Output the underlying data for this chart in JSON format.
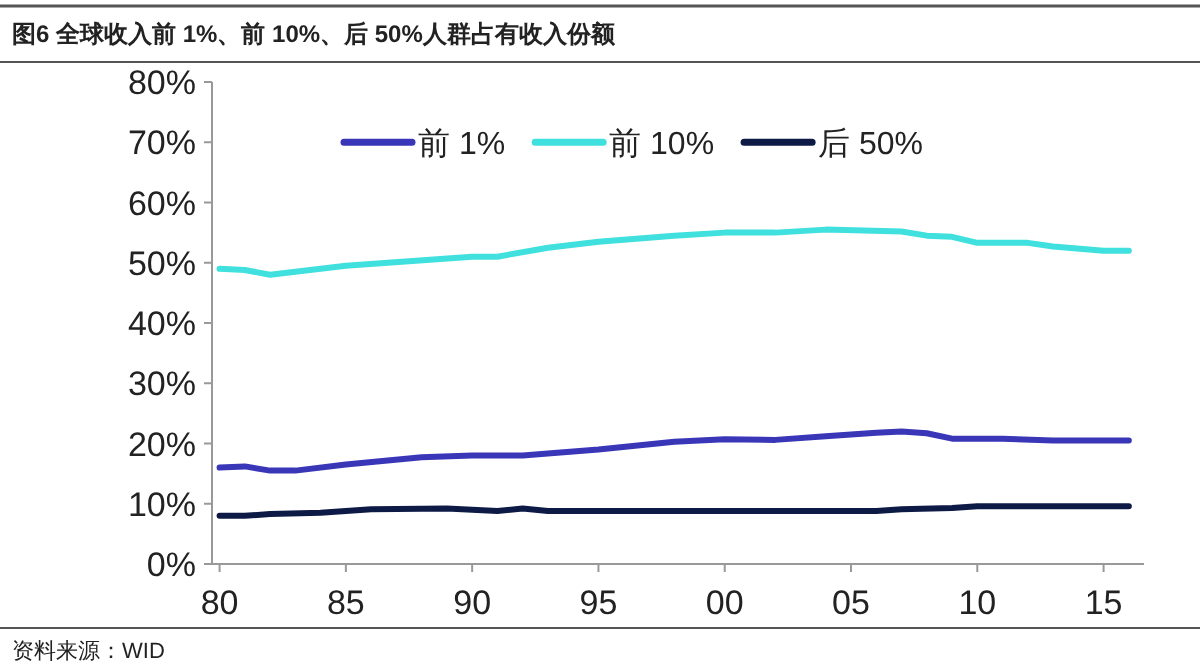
{
  "chart_data": {
    "type": "line",
    "title": "图6   全球收入前 1%、前 10%、后 50%人群占有收入份额",
    "annotations": [
      "资料来源：WID"
    ],
    "xlim": [
      1979.7,
      2016.6
    ],
    "xticks": [
      {
        "value": 1980,
        "label": "80"
      },
      {
        "value": 1985,
        "label": "85"
      },
      {
        "value": 1990,
        "label": "90"
      },
      {
        "value": 1995,
        "label": "95"
      },
      {
        "value": 2000,
        "label": "00"
      },
      {
        "value": 2005,
        "label": "05"
      },
      {
        "value": 2010,
        "label": "10"
      },
      {
        "value": 2015,
        "label": "15"
      }
    ],
    "ylim": [
      0,
      80
    ],
    "yticks": [
      {
        "value": 0,
        "label": "0%"
      },
      {
        "value": 10,
        "label": "10%"
      },
      {
        "value": 20,
        "label": "20%"
      },
      {
        "value": 30,
        "label": "30%"
      },
      {
        "value": 40,
        "label": "40%"
      },
      {
        "value": 50,
        "label": "50%"
      },
      {
        "value": 60,
        "label": "60%"
      },
      {
        "value": 70,
        "label": "70%"
      },
      {
        "value": 80,
        "label": "80%"
      }
    ],
    "grid": false,
    "legend": "top",
    "marker": "none",
    "line_style": "solid",
    "series": [
      {
        "name": "前 1%",
        "color": "#3a36b8",
        "x": [
          1980,
          1981,
          1982,
          1983,
          1985,
          1988,
          1990,
          1992,
          1995,
          1998,
          2000,
          2002,
          2004,
          2006,
          2007,
          2008,
          2009,
          2011,
          2013,
          2016
        ],
        "values": [
          16,
          16.2,
          15.5,
          15.5,
          16.5,
          17.7,
          18,
          18,
          19,
          20.3,
          20.7,
          20.6,
          21.2,
          21.8,
          22,
          21.7,
          20.8,
          20.8,
          20.5,
          20.5
        ]
      },
      {
        "name": "前 10%",
        "color": "#3fe0de",
        "x": [
          1980,
          1981,
          1982,
          1983,
          1985,
          1990,
          1991,
          1993,
          1995,
          1998,
          2000,
          2002,
          2004,
          2007,
          2008,
          2009,
          2010,
          2012,
          2013,
          2015,
          2016
        ],
        "values": [
          49,
          48.8,
          48,
          48.5,
          49.5,
          51,
          51,
          52.5,
          53.5,
          54.5,
          55,
          55,
          55.5,
          55.2,
          54.5,
          54.3,
          53.3,
          53.3,
          52.7,
          52,
          52
        ]
      },
      {
        "name": "后 50%",
        "color": "#0d1a45",
        "x": [
          1980,
          1981,
          1982,
          1984,
          1986,
          1989,
          1990,
          1991,
          1992,
          1993,
          2006,
          2007,
          2009,
          2010,
          2016
        ],
        "values": [
          8,
          8,
          8.3,
          8.5,
          9.1,
          9.2,
          9,
          8.8,
          9.2,
          8.8,
          8.8,
          9.1,
          9.3,
          9.6,
          9.6
        ]
      }
    ]
  }
}
